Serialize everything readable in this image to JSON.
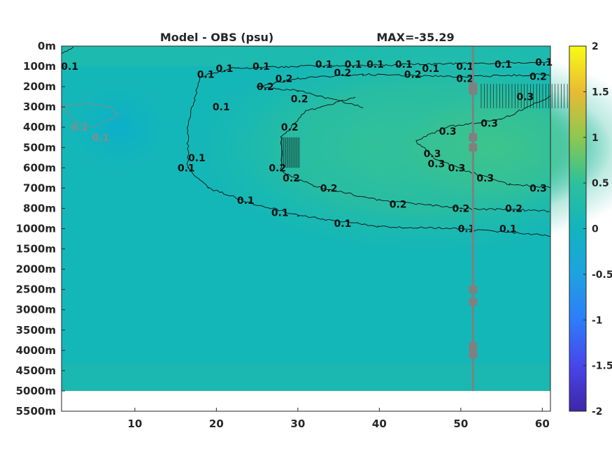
{
  "chart_data": {
    "type": "heatmap",
    "title_left": "Model - OBS (psu)",
    "title_right": "MAX=-35.29",
    "y_tick_labels": [
      "0m",
      "100m",
      "200m",
      "300m",
      "400m",
      "500m",
      "600m",
      "700m",
      "800m",
      "1000m",
      "1500m",
      "2000m",
      "2500m",
      "3000m",
      "3500m",
      "4000m",
      "4500m",
      "5000m",
      "5500m"
    ],
    "x_ticks": [
      10,
      20,
      30,
      40,
      50,
      60
    ],
    "xlim": [
      1,
      61
    ],
    "colorbar": {
      "range": [
        -2,
        2
      ],
      "ticks": [
        2,
        1.5,
        1,
        0.5,
        0,
        -0.5,
        -1,
        -1.5,
        -2
      ],
      "tick_labels": [
        "2",
        "1.5",
        "1",
        "0.5",
        "0",
        "-0.5",
        "-1",
        "-1.5",
        "-2"
      ],
      "colormap": "parula"
    },
    "contour_levels": [
      0.1,
      0.2,
      0.3
    ],
    "negative_contour_level": -0.1,
    "vertical_line_x": 51.5,
    "vertical_line_color": "#808080",
    "marker_color": "#808080",
    "marker_depths": [
      "200m",
      "220m",
      "450m",
      "500m",
      "2500m",
      "2800m",
      "3900m",
      "4100m"
    ],
    "contour_labels": [
      {
        "text": "0.1",
        "x": 2.0,
        "level": "100m"
      },
      {
        "text": "0.1",
        "x": 3.2,
        "level": "400m"
      },
      {
        "text": "0.1",
        "x": 5.8,
        "level": "450m"
      },
      {
        "text": "0.1",
        "x": 18.7,
        "level": "140m"
      },
      {
        "text": "0.1",
        "x": 21.0,
        "level": "110m"
      },
      {
        "text": "0.1",
        "x": 25.5,
        "level": "100m"
      },
      {
        "text": "0.1",
        "x": 33.2,
        "level": "90m"
      },
      {
        "text": "0.1",
        "x": 36.8,
        "level": "90m"
      },
      {
        "text": "0.1",
        "x": 39.5,
        "level": "90m"
      },
      {
        "text": "0.1",
        "x": 43.0,
        "level": "90m"
      },
      {
        "text": "0.1",
        "x": 46.3,
        "level": "110m"
      },
      {
        "text": "0.1",
        "x": 50.5,
        "level": "100m"
      },
      {
        "text": "0.1",
        "x": 55.2,
        "level": "90m"
      },
      {
        "text": "0.1",
        "x": 60.2,
        "level": "80m"
      },
      {
        "text": "0.1",
        "x": 17.6,
        "level": "550m"
      },
      {
        "text": "0.1",
        "x": 16.3,
        "level": "600m"
      },
      {
        "text": "0.1",
        "x": 20.6,
        "level": "300m"
      },
      {
        "text": "0.1",
        "x": 23.6,
        "level": "760m"
      },
      {
        "text": "0.1",
        "x": 27.8,
        "level": "840m"
      },
      {
        "text": "0.1",
        "x": 35.5,
        "level": "950m"
      },
      {
        "text": "0.1",
        "x": 50.7,
        "level": "1000m"
      },
      {
        "text": "0.1",
        "x": 55.8,
        "level": "1000m"
      },
      {
        "text": "0.2",
        "x": 28.3,
        "level": "160m"
      },
      {
        "text": "0.2",
        "x": 26.0,
        "level": "200m"
      },
      {
        "text": "0.2",
        "x": 35.5,
        "level": "130m"
      },
      {
        "text": "0.2",
        "x": 44.1,
        "level": "140m"
      },
      {
        "text": "0.2",
        "x": 50.5,
        "level": "160m"
      },
      {
        "text": "0.2",
        "x": 59.5,
        "level": "150m"
      },
      {
        "text": "0.2",
        "x": 30.2,
        "level": "260m"
      },
      {
        "text": "0.2",
        "x": 29.0,
        "level": "400m"
      },
      {
        "text": "0.2",
        "x": 27.5,
        "level": "600m"
      },
      {
        "text": "0.2",
        "x": 29.2,
        "level": "650m"
      },
      {
        "text": "0.2",
        "x": 33.8,
        "level": "700m"
      },
      {
        "text": "0.2",
        "x": 42.3,
        "level": "780m"
      },
      {
        "text": "0.2",
        "x": 50.0,
        "level": "800m"
      },
      {
        "text": "0.2",
        "x": 56.5,
        "level": "800m"
      },
      {
        "text": "0.3",
        "x": 57.9,
        "level": "250m"
      },
      {
        "text": "0.3",
        "x": 53.5,
        "level": "380m"
      },
      {
        "text": "0.3",
        "x": 48.4,
        "level": "420m"
      },
      {
        "text": "0.3",
        "x": 46.5,
        "level": "530m"
      },
      {
        "text": "0.3",
        "x": 47.0,
        "level": "580m"
      },
      {
        "text": "0.3",
        "x": 49.5,
        "level": "600m"
      },
      {
        "text": "0.3",
        "x": 53.0,
        "level": "650m"
      },
      {
        "text": "0.3",
        "x": 59.5,
        "level": "700m"
      }
    ]
  }
}
